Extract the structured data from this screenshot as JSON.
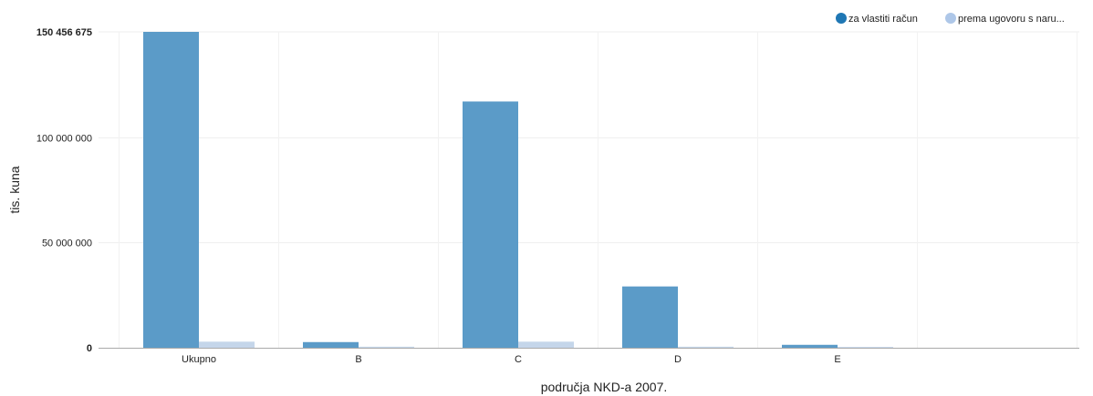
{
  "chart_data": {
    "type": "bar",
    "categories": [
      "Ukupno",
      "B",
      "C",
      "D",
      "E"
    ],
    "series": [
      {
        "name": "za vlastiti račun",
        "color": "#5b9bc8",
        "legend_color": "#1f77b4",
        "values": [
          150456675,
          2700000,
          117300000,
          29200000,
          1400000
        ]
      },
      {
        "name": "prema ugovoru s naru...",
        "color": "#c5d6ea",
        "legend_color": "#aec7e8",
        "values": [
          2900000,
          500000,
          2900000,
          500000,
          400000
        ]
      }
    ],
    "xlabel": "područja NKD-a 2007.",
    "ylabel": "tis. kuna",
    "ylim": [
      0,
      150456675
    ],
    "yticks": [
      {
        "value": 0,
        "label": "0"
      },
      {
        "value": 50000000,
        "label": "50 000 000"
      },
      {
        "value": 100000000,
        "label": "100 000 000"
      },
      {
        "value": 150456675,
        "label": "150 456 675"
      }
    ],
    "legend_position": "top-right",
    "grid": true
  }
}
